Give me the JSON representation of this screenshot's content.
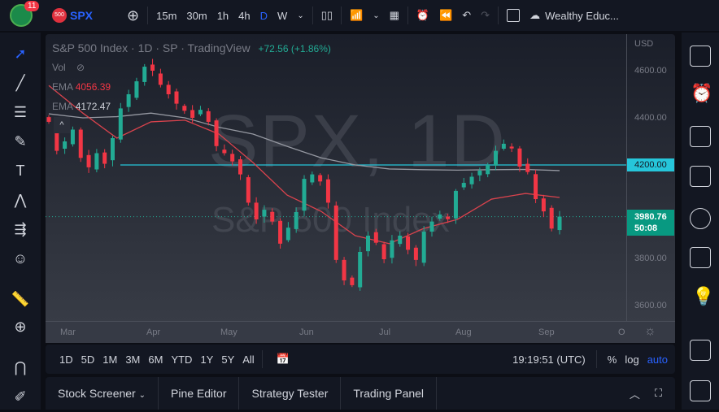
{
  "topbar": {
    "badge_count": "11",
    "symbol_badge": "500",
    "symbol": "SPX",
    "intervals": [
      "15m",
      "30m",
      "1h",
      "4h",
      "D",
      "W"
    ],
    "active_interval": "D",
    "account": "Wealthy Educ..."
  },
  "legend": {
    "title": "S&P 500 Index · 1D · SP",
    "source": "· TradingView",
    "change": "+72.56 (+1.86%)",
    "vol": "Vol",
    "ema1_label": "EMA",
    "ema1_value": "4056.39",
    "ema2_label": "EMA",
    "ema2_value": "4172.47"
  },
  "watermark": {
    "main": "SPX, 1D",
    "sub": "S&P 500 Index"
  },
  "price_axis": {
    "currency": "USD",
    "ticks": [
      "4600.00",
      "4400.00",
      "3800.00",
      "3600.00"
    ],
    "line_label": "4200.00",
    "last_price": "3980.76",
    "countdown": "50:08"
  },
  "time_axis": [
    "Mar",
    "Apr",
    "May",
    "Jun",
    "Jul",
    "Aug",
    "Sep",
    "O"
  ],
  "range_bar": {
    "ranges": [
      "1D",
      "5D",
      "1M",
      "3M",
      "6M",
      "YTD",
      "1Y",
      "5Y",
      "All"
    ],
    "clock": "19:19:51 (UTC)",
    "percent": "%",
    "log": "log",
    "auto": "auto"
  },
  "bottom_tabs": [
    "Stock Screener",
    "Pine Editor",
    "Strategy Tester",
    "Trading Panel"
  ],
  "colors": {
    "up": "#22ab94",
    "down": "#f23645",
    "ema50": "#d9434d",
    "ema200": "#9598a1",
    "hline": "#26c6da",
    "accent": "#2962ff"
  },
  "chart_data": {
    "type": "candlestick",
    "ylim": [
      3560,
      4680
    ],
    "horizontal_line": 4200,
    "closes": [
      4383,
      4260,
      4300,
      4350,
      4230,
      4190,
      4250,
      4205,
      4314,
      4440,
      4500,
      4555,
      4617,
      4600,
      4540,
      4500,
      4460,
      4430,
      4400,
      4434,
      4383,
      4280,
      4250,
      4215,
      4160,
      4040,
      3969,
      4010,
      3960,
      3866,
      3934,
      4000,
      4141,
      4160,
      4130,
      4040,
      3797,
      3710,
      3690,
      3831,
      3900,
      3870,
      3800,
      3880,
      3900,
      3840,
      3797,
      3917,
      3960,
      3990,
      3970,
      4090,
      4124,
      4150,
      4176,
      4200,
      4260,
      4290,
      4270,
      4193,
      4170,
      4055,
      4003,
      3930,
      3980.76
    ],
    "ema50": [
      4537,
      4420,
      4314,
      4383,
      4390,
      4331,
      4210,
      4072,
      4003,
      3900,
      3866,
      3930,
      3969,
      4055,
      4079,
      4062
    ],
    "ema200": [
      4417,
      4400,
      4405,
      4420,
      4400,
      4360,
      4331,
      4279,
      4230,
      4200,
      4183,
      4180,
      4178,
      4180,
      4181,
      4176
    ]
  }
}
